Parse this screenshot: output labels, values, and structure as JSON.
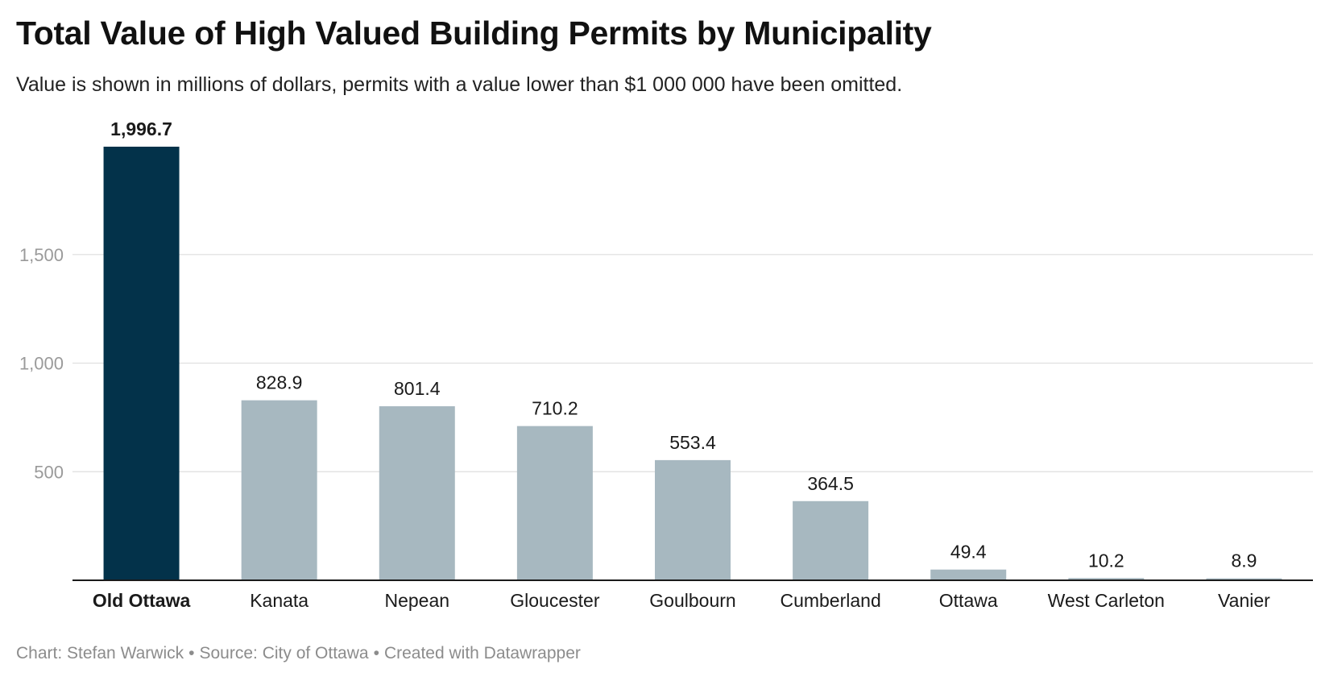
{
  "title": "Total Value of High Valued Building Permits by Municipality",
  "subtitle": "Value is shown in millions of dollars, permits with a value lower than $1 000 000 have been omitted.",
  "footer": {
    "chart_credit": "Chart: Stefan Warwick",
    "source": "Source: City of Ottawa",
    "created_with": "Created with Datawrapper",
    "separator": "•"
  },
  "colors": {
    "highlight_bar": "#03324a",
    "bar": "#a7b8c0",
    "gridline": "#dedede",
    "axis_tick_text": "#9a9a9a"
  },
  "chart_data": {
    "type": "bar",
    "categories": [
      "Old Ottawa",
      "Kanata",
      "Nepean",
      "Gloucester",
      "Goulbourn",
      "Cumberland",
      "Ottawa",
      "West Carleton",
      "Vanier"
    ],
    "values": [
      1996.7,
      828.9,
      801.4,
      710.2,
      553.4,
      364.5,
      49.4,
      10.2,
      8.9
    ],
    "value_labels": [
      "1,996.7",
      "828.9",
      "801.4",
      "710.2",
      "553.4",
      "364.5",
      "49.4",
      "10.2",
      "8.9"
    ],
    "highlighted_category": "Old Ottawa",
    "yticks": [
      500,
      1000,
      1500
    ],
    "ytick_labels": [
      "500",
      "1,000",
      "1,500"
    ],
    "ylim": [
      0,
      2000
    ],
    "grid": true,
    "legend": "none"
  }
}
